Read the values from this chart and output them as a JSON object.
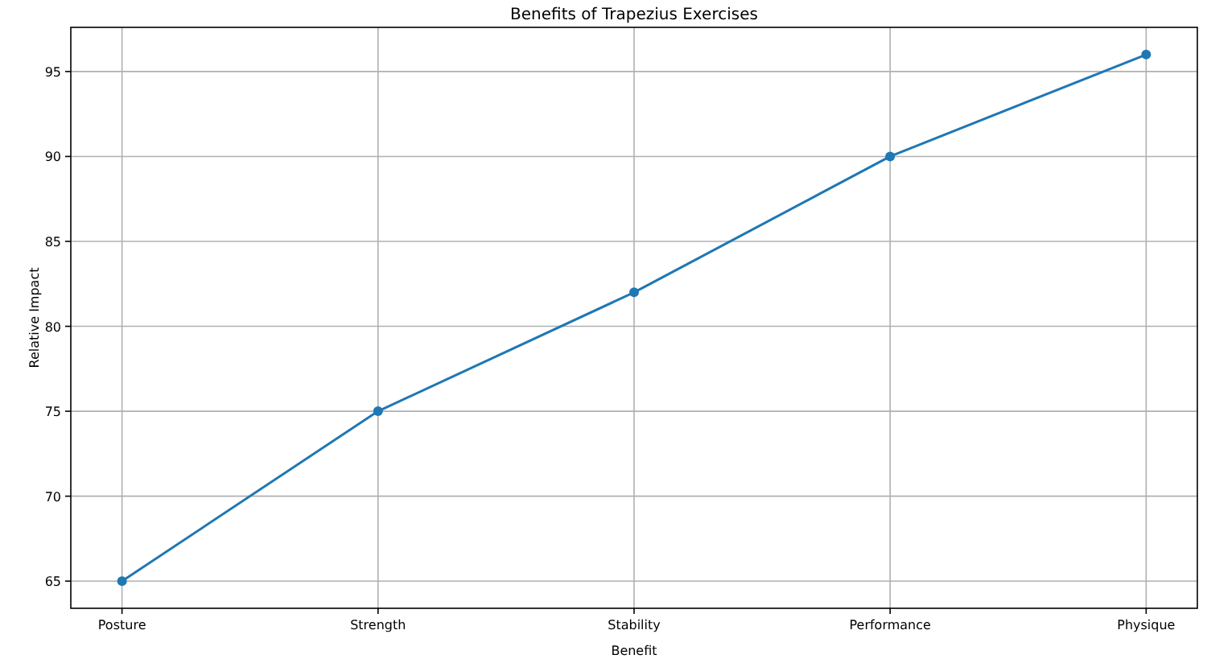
{
  "chart_data": {
    "type": "line",
    "title": "Benefits of Trapezius Exercises",
    "xlabel": "Benefit",
    "ylabel": "Relative Impact",
    "categories": [
      "Posture",
      "Strength",
      "Stability",
      "Performance",
      "Physique"
    ],
    "series": [
      {
        "color": "#1f77b4",
        "values": [
          65,
          75,
          82,
          90,
          96
        ]
      }
    ],
    "ylim": [
      63.4,
      97.6
    ],
    "yticks": [
      65,
      70,
      75,
      80,
      85,
      90,
      95
    ],
    "grid": true,
    "marker": "circle",
    "line_style": "solid"
  }
}
